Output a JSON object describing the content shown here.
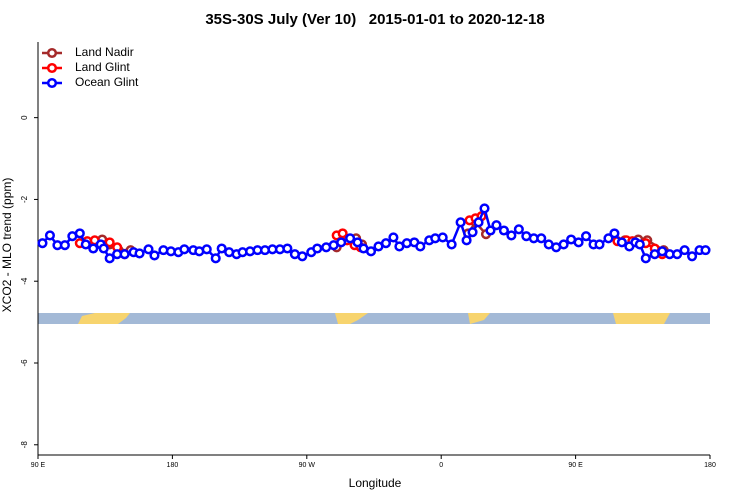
{
  "chart_data": {
    "type": "line",
    "title": "35S-30S July (Ver 10)   2015-01-01 to 2020-12-18",
    "x_label": "Longitude",
    "y_label": "XCO2 - MLO trend (ppm)",
    "xlim": [
      90,
      540
    ],
    "xticks": [
      {
        "value": 90,
        "label": "90 E"
      },
      180,
      {
        "value": 270,
        "label": "90 W"
      },
      {
        "value": 360,
        "label": "0"
      },
      {
        "value": 450,
        "label": "90 E"
      },
      {
        "value": 540,
        "label": "180"
      }
    ],
    "ylim": [
      -8.25,
      1.85
    ],
    "yticks": [
      0,
      -2,
      -4,
      -6,
      -8
    ],
    "legend": "top-left",
    "series": [
      {
        "name": "Land Nadir",
        "color": "#a52a2a",
        "x": [
          133,
          138,
          144,
          152,
          null,
          290,
          303,
          307,
          null,
          378,
          383,
          390,
          null,
          483,
          492,
          498,
          509
        ],
        "values": [
          -2.98,
          -3.1,
          -3.24,
          -3.24,
          null,
          -3.17,
          -2.95,
          -3.1,
          null,
          -2.83,
          -2.56,
          -2.85,
          null,
          -3.0,
          -2.98,
          -3.0,
          -3.24
        ]
      },
      {
        "name": "Land Glint",
        "color": "#ff0000",
        "x": [
          118,
          123,
          128,
          138,
          143,
          148,
          null,
          290,
          294,
          297,
          302,
          306,
          null,
          379,
          383,
          387,
          null,
          478,
          484,
          488,
          497,
          503,
          508
        ],
        "values": [
          -3.07,
          -3.02,
          -3.0,
          -3.05,
          -3.17,
          -3.34,
          null,
          -2.88,
          -2.83,
          -3.0,
          -3.12,
          -3.17,
          null,
          -2.51,
          -2.46,
          -2.41,
          null,
          -3.02,
          -3.0,
          -3.02,
          -3.07,
          -3.2,
          -3.34
        ]
      },
      {
        "name": "Ocean Glint",
        "color": "#0000ff",
        "x": [
          93,
          98,
          103,
          108,
          113,
          118,
          122,
          127,
          132,
          134,
          138,
          143,
          148,
          154,
          158,
          164,
          168,
          174,
          179,
          184,
          188,
          194,
          198,
          203,
          209,
          213,
          218,
          223,
          227,
          232,
          237,
          242,
          247,
          252,
          257,
          262,
          267,
          273,
          277,
          283,
          288,
          293,
          299,
          304,
          308,
          313,
          318,
          323,
          328,
          332,
          337,
          342,
          346,
          352,
          356,
          361,
          367,
          373,
          377,
          381,
          385,
          389,
          393,
          397,
          402,
          407,
          412,
          417,
          422,
          427,
          432,
          437,
          442,
          447,
          452,
          457,
          462,
          466,
          472,
          476,
          481,
          486,
          490,
          493,
          497,
          503,
          508,
          513,
          518,
          523,
          528,
          533,
          537
        ],
        "values": [
          -3.07,
          -2.88,
          -3.12,
          -3.12,
          -2.9,
          -2.83,
          -3.1,
          -3.2,
          -3.1,
          -3.2,
          -3.44,
          -3.34,
          -3.34,
          -3.29,
          -3.32,
          -3.22,
          -3.37,
          -3.24,
          -3.27,
          -3.29,
          -3.22,
          -3.24,
          -3.27,
          -3.22,
          -3.44,
          -3.2,
          -3.29,
          -3.34,
          -3.29,
          -3.27,
          -3.24,
          -3.24,
          -3.22,
          -3.22,
          -3.2,
          -3.34,
          -3.39,
          -3.29,
          -3.2,
          -3.17,
          -3.12,
          -3.05,
          -2.95,
          -3.05,
          -3.2,
          -3.27,
          -3.15,
          -3.07,
          -2.93,
          -3.15,
          -3.07,
          -3.05,
          -3.15,
          -3.0,
          -2.95,
          -2.93,
          -3.1,
          -2.56,
          -3.0,
          -2.8,
          -2.56,
          -2.22,
          -2.76,
          -2.63,
          -2.76,
          -2.88,
          -2.73,
          -2.9,
          -2.95,
          -2.95,
          -3.1,
          -3.17,
          -3.1,
          -2.98,
          -3.05,
          -2.9,
          -3.1,
          -3.1,
          -2.95,
          -2.83,
          -3.05,
          -3.15,
          -3.05,
          -3.1,
          -3.44,
          -3.34,
          -3.27,
          -3.34,
          -3.34,
          -3.24,
          -3.39,
          -3.24,
          -3.24
        ]
      }
    ]
  }
}
